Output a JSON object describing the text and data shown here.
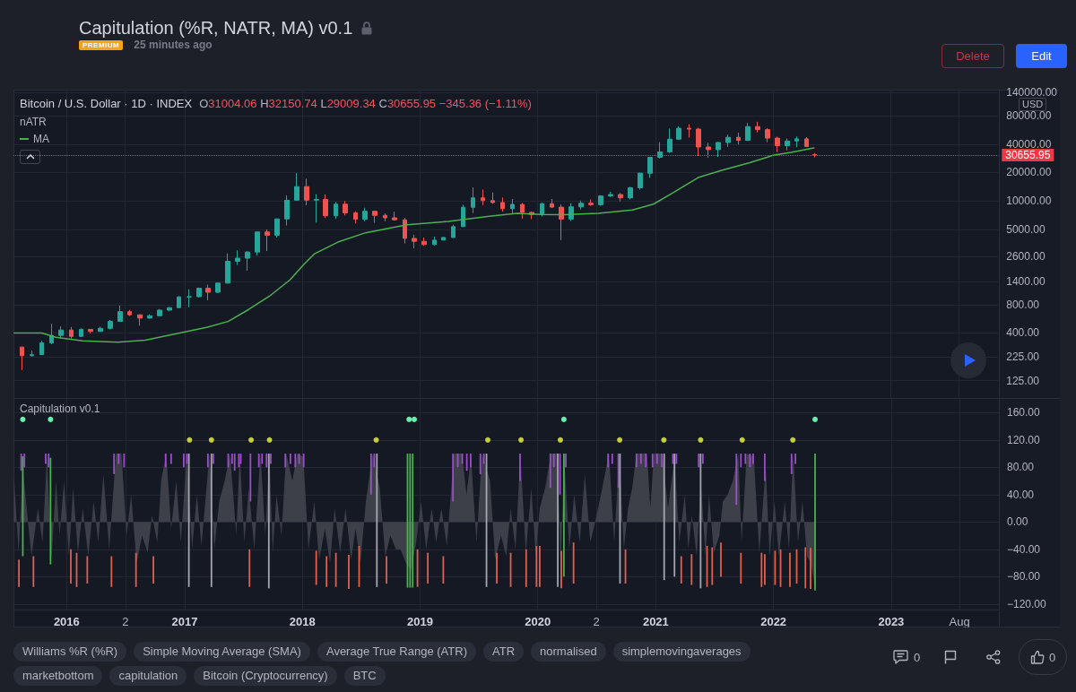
{
  "chart_data": [
    {
      "type": "candlestick",
      "title": "Capitulation (%R, NATR, MA) v0.1",
      "subtitle": "Bitcoin / U.S. Dollar · 1D · INDEX",
      "ylabel": "USD",
      "x": [
        "2015-08-15",
        "2015-09-15",
        "2015-10-15",
        "2015-11-15",
        "2015-12-15",
        "2016-01-15",
        "2016-02-15",
        "2016-03-15",
        "2016-04-15",
        "2016-05-15",
        "2016-06-15",
        "2016-07-15",
        "2016-08-15",
        "2016-09-15",
        "2016-10-15",
        "2016-11-15",
        "2016-12-15",
        "2017-01-15",
        "2017-02-15",
        "2017-03-15",
        "2017-04-15",
        "2017-05-15",
        "2017-06-15",
        "2017-07-15",
        "2017-08-15",
        "2017-09-15",
        "2017-10-15",
        "2017-11-15",
        "2017-12-15",
        "2018-01-15",
        "2018-02-15",
        "2018-03-15",
        "2018-04-15",
        "2018-05-15",
        "2018-06-15",
        "2018-07-15",
        "2018-08-15",
        "2018-09-15",
        "2018-10-15",
        "2018-11-15",
        "2018-12-15",
        "2019-01-15",
        "2019-02-15",
        "2019-03-15",
        "2019-04-15",
        "2019-05-15",
        "2019-06-15",
        "2019-07-15",
        "2019-08-15",
        "2019-09-15",
        "2019-10-15",
        "2019-11-15",
        "2019-12-15",
        "2020-01-15",
        "2020-02-15",
        "2020-03-15",
        "2020-04-15",
        "2020-05-15",
        "2020-06-15",
        "2020-07-15",
        "2020-08-15",
        "2020-09-15",
        "2020-10-15",
        "2020-11-15",
        "2020-12-15",
        "2021-01-15",
        "2021-02-15",
        "2021-03-15",
        "2021-04-15",
        "2021-05-15",
        "2021-06-15",
        "2021-07-15",
        "2021-08-15",
        "2021-09-15",
        "2021-10-15",
        "2021-11-15",
        "2021-12-15",
        "2022-01-15",
        "2022-02-15",
        "2022-03-15",
        "2022-04-15",
        "2022-05-10"
      ],
      "ohlc": [
        [
          284,
          286,
          162,
          230
        ],
        [
          230,
          260,
          226,
          236
        ],
        [
          236,
          330,
          235,
          314
        ],
        [
          314,
          500,
          306,
          377
        ],
        [
          377,
          470,
          350,
          430
        ],
        [
          430,
          463,
          350,
          368
        ],
        [
          368,
          448,
          365,
          437
        ],
        [
          437,
          440,
          396,
          416
        ],
        [
          416,
          467,
          415,
          448
        ],
        [
          448,
          550,
          437,
          531
        ],
        [
          531,
          780,
          527,
          673
        ],
        [
          673,
          704,
          605,
          624
        ],
        [
          624,
          627,
          477,
          575
        ],
        [
          575,
          630,
          568,
          609
        ],
        [
          609,
          720,
          607,
          698
        ],
        [
          698,
          755,
          680,
          742
        ],
        [
          742,
          980,
          740,
          964
        ],
        [
          964,
          1160,
          750,
          970
        ],
        [
          970,
          1210,
          950,
          1190
        ],
        [
          1190,
          1300,
          890,
          1080
        ],
        [
          1080,
          1360,
          1060,
          1350
        ],
        [
          1350,
          2790,
          1340,
          2300
        ],
        [
          2300,
          3000,
          2100,
          2480
        ],
        [
          2480,
          2950,
          1830,
          2880
        ],
        [
          2880,
          4750,
          2650,
          4700
        ],
        [
          4700,
          5000,
          2950,
          4340
        ],
        [
          4340,
          6470,
          4100,
          6460
        ],
        [
          6460,
          11500,
          5500,
          10200
        ],
        [
          10200,
          19700,
          10100,
          14200
        ],
        [
          14200,
          17200,
          9000,
          10200
        ],
        [
          10200,
          11800,
          5900,
          10400
        ],
        [
          10400,
          11700,
          6600,
          6970
        ],
        [
          6970,
          9750,
          6450,
          9240
        ],
        [
          9240,
          9990,
          7050,
          7490
        ],
        [
          7490,
          7770,
          5780,
          6400
        ],
        [
          6400,
          8500,
          6100,
          7780
        ],
        [
          7780,
          7800,
          5880,
          7040
        ],
        [
          7040,
          7400,
          6100,
          6630
        ],
        [
          6630,
          7700,
          6200,
          6320
        ],
        [
          6320,
          6600,
          3550,
          4020
        ],
        [
          4020,
          4400,
          3150,
          3740
        ],
        [
          3740,
          4100,
          3350,
          3460
        ],
        [
          3460,
          4200,
          3380,
          3850
        ],
        [
          3850,
          4110,
          3850,
          4110
        ],
        [
          4110,
          5600,
          4050,
          5350
        ],
        [
          5350,
          9100,
          5320,
          8570
        ],
        [
          8570,
          13900,
          7450,
          10800
        ],
        [
          10800,
          13200,
          9050,
          10100
        ],
        [
          10100,
          12300,
          9350,
          9630
        ],
        [
          9630,
          10900,
          7700,
          8290
        ],
        [
          8290,
          10500,
          7300,
          9200
        ],
        [
          9200,
          9500,
          6500,
          7570
        ],
        [
          7570,
          7750,
          6430,
          7190
        ],
        [
          7190,
          9600,
          6850,
          9350
        ],
        [
          9350,
          10500,
          8450,
          8600
        ],
        [
          8600,
          9200,
          3850,
          6440
        ],
        [
          6440,
          9470,
          6150,
          8660
        ],
        [
          8660,
          10100,
          8120,
          9460
        ],
        [
          9460,
          10400,
          8900,
          9140
        ],
        [
          9140,
          11500,
          8900,
          11300
        ],
        [
          11300,
          12500,
          11000,
          11700
        ],
        [
          11700,
          12100,
          9900,
          10800
        ],
        [
          10800,
          14100,
          10400,
          13800
        ],
        [
          13800,
          19900,
          13200,
          19700
        ],
        [
          19700,
          29300,
          17600,
          29000
        ],
        [
          29000,
          42000,
          28100,
          33100
        ],
        [
          33100,
          58400,
          32300,
          45100
        ],
        [
          45100,
          61800,
          45000,
          58900
        ],
        [
          58900,
          64900,
          47000,
          57700
        ],
        [
          57700,
          59600,
          30000,
          37300
        ],
        [
          37300,
          41300,
          28800,
          35000
        ],
        [
          35000,
          42300,
          29300,
          41600
        ],
        [
          41600,
          50500,
          37400,
          47200
        ],
        [
          47200,
          52900,
          39600,
          43800
        ],
        [
          43800,
          67000,
          43300,
          61300
        ],
        [
          61300,
          69000,
          53300,
          57000
        ],
        [
          57000,
          59100,
          42000,
          46300
        ],
        [
          46300,
          48000,
          32900,
          38500
        ],
        [
          38500,
          45800,
          34300,
          43200
        ],
        [
          43200,
          48200,
          37200,
          45500
        ],
        [
          45500,
          47500,
          37600,
          37700
        ],
        [
          31004.06,
          32150.74,
          29009.34,
          30655.95
        ]
      ],
      "colors": [
        "#ef5350",
        "#26a69a",
        "#26a69a",
        "#26a69a",
        "#26a69a",
        "#ef5350",
        "#26a69a",
        "#ef5350",
        "#26a69a",
        "#26a69a",
        "#26a69a",
        "#ef5350",
        "#ef5350",
        "#26a69a",
        "#26a69a",
        "#26a69a",
        "#26a69a",
        "#26a69a",
        "#26a69a",
        "#ef5350",
        "#26a69a",
        "#26a69a",
        "#26a69a",
        "#26a69a",
        "#26a69a",
        "#ef5350",
        "#26a69a",
        "#26a69a",
        "#26a69a",
        "#ef5350",
        "#26a69a",
        "#ef5350",
        "#26a69a",
        "#ef5350",
        "#ef5350",
        "#26a69a",
        "#ef5350",
        "#ef5350",
        "#ef5350",
        "#ef5350",
        "#ef5350",
        "#ef5350",
        "#26a69a",
        "#26a69a",
        "#26a69a",
        "#26a69a",
        "#26a69a",
        "#ef5350",
        "#ef5350",
        "#ef5350",
        "#26a69a",
        "#ef5350",
        "#ef5350",
        "#26a69a",
        "#ef5350",
        "#ef5350",
        "#26a69a",
        "#26a69a",
        "#ef5350",
        "#26a69a",
        "#26a69a",
        "#ef5350",
        "#26a69a",
        "#26a69a",
        "#26a69a",
        "#26a69a",
        "#26a69a",
        "#26a69a",
        "#ef5350",
        "#ef5350",
        "#ef5350",
        "#26a69a",
        "#26a69a",
        "#ef5350",
        "#26a69a",
        "#ef5350",
        "#ef5350",
        "#ef5350",
        "#26a69a",
        "#26a69a",
        "#ef5350",
        "#ef5350"
      ],
      "series": [
        {
          "type": "line",
          "name": "MA",
          "color": "#4caf50",
          "x": [
            "2015-07-22",
            "2015-10-16",
            "2015-11-28",
            "2016-02-20",
            "2016-06-08",
            "2016-09-01",
            "2016-12-17",
            "2017-03-13",
            "2017-05-16",
            "2017-07-19",
            "2017-09-21",
            "2017-11-24",
            "2018-01-06",
            "2018-02-07",
            "2018-04-22",
            "2018-07-17",
            "2018-11-22",
            "2019-03-31",
            "2019-08-05",
            "2019-10-30",
            "2020-01-11",
            "2020-03-23",
            "2020-07-08",
            "2020-10-22",
            "2020-12-26",
            "2021-02-28",
            "2021-05-14",
            "2021-07-26",
            "2021-10-21",
            "2022-01-04",
            "2022-02-26",
            "2022-05-08"
          ],
          "values": [
            400,
            400,
            360,
            330,
            320,
            335,
            400,
            460,
            530,
            710,
            980,
            1460,
            2130,
            2740,
            3670,
            4610,
            5590,
            6090,
            6900,
            7380,
            7200,
            7140,
            7380,
            8040,
            9260,
            12400,
            17700,
            21100,
            25400,
            30600,
            32700,
            36500
          ]
        }
      ],
      "xlim": [
        "2015-07-20",
        "2023-12-01"
      ],
      "xticks": [
        {
          "value": "2016-01-01",
          "label": null
        },
        {
          "value": "2016-07-01",
          "label": null
        },
        {
          "value": "2017-01-01",
          "label": null
        },
        {
          "value": "2018-01-01",
          "label": null
        },
        {
          "value": "2019-01-01",
          "label": null
        },
        {
          "value": "2020-01-01",
          "label": null
        },
        {
          "value": "2020-07-01",
          "label": null
        },
        {
          "value": "2021-01-01",
          "label": null
        },
        {
          "value": "2022-01-01",
          "label": null
        },
        {
          "value": "2023-01-01",
          "label": null
        },
        {
          "value": "2023-08-01",
          "label": null
        }
      ],
      "ylim": [
        82,
        151000
      ],
      "yticks": [
        {
          "value": 125,
          "label": "125.00"
        },
        {
          "value": 225,
          "label": "225.00"
        },
        {
          "value": 400,
          "label": "400.00"
        },
        {
          "value": 800,
          "label": "800.00"
        },
        {
          "value": 1400,
          "label": "1400.00"
        },
        {
          "value": 2600,
          "label": "2600.00"
        },
        {
          "value": 5000,
          "label": "5000.00"
        },
        {
          "value": 10000,
          "label": "10000.00"
        },
        {
          "value": 20000,
          "label": "20000.00"
        },
        {
          "value": 40000,
          "label": "40000.00"
        },
        {
          "value": 80000,
          "label": "80000.00"
        },
        {
          "value": 140000,
          "label": "140000.00"
        }
      ],
      "log": true,
      "grid": true,
      "legend": "top left",
      "marker": "none",
      "tick_labels": "y",
      "ref_lines": [
        {
          "axis": "y",
          "value": 30655.95,
          "label": "30655.95",
          "color": "#f23645",
          "line_style": "dotted"
        }
      ],
      "annotations": [
        "PREMIUM",
        "25 minutes ago",
        "Delete",
        "Edit",
        "O31004.06 H32150.74 L29009.34 C30655.95 −345.36 (−1.11%)",
        "nATR"
      ]
    },
    {
      "type": "area",
      "title": "Capitulation v0.1",
      "series": [
        {
          "color": "#3d4049",
          "x": [
            "2015-07-21",
            "2015-08-05",
            "2015-08-18",
            "2015-09-01",
            "2015-09-14",
            "2015-10-04",
            "2015-10-18",
            "2015-11-01",
            "2015-11-15",
            "2015-11-29",
            "2015-12-10",
            "2015-12-24",
            "2016-01-08",
            "2016-01-21",
            "2016-02-05",
            "2016-02-20",
            "2016-03-08",
            "2016-03-25",
            "2016-04-08",
            "2016-04-24",
            "2016-05-12",
            "2016-06-02",
            "2016-06-19",
            "2016-07-05",
            "2016-07-19",
            "2016-08-05",
            "2016-08-22",
            "2016-09-08",
            "2016-09-22",
            "2016-10-08",
            "2016-10-20",
            "2016-11-05",
            "2016-11-20",
            "2016-12-06",
            "2016-12-20",
            "2017-01-08",
            "2017-01-24",
            "2017-02-08",
            "2017-02-22",
            "2017-03-19",
            "2017-04-03",
            "2017-04-18",
            "2017-05-05",
            "2017-05-22",
            "2017-06-10",
            "2017-06-21",
            "2017-07-05",
            "2017-07-19",
            "2017-08-05",
            "2017-08-24",
            "2017-09-08",
            "2017-09-21",
            "2017-10-01",
            "2017-10-13",
            "2017-10-28",
            "2017-11-12",
            "2017-12-01",
            "2017-12-16",
            "2018-01-04",
            "2018-01-20",
            "2018-02-07",
            "2018-02-22",
            "2018-03-12",
            "2018-03-28",
            "2018-04-11",
            "2018-04-28",
            "2018-05-15",
            "2018-06-01",
            "2018-06-15",
            "2018-06-30",
            "2018-07-17",
            "2018-08-07",
            "2018-08-29",
            "2018-09-15",
            "2018-10-01",
            "2018-10-18",
            "2018-11-01",
            "2018-11-18",
            "2018-12-04",
            "2018-12-20",
            "2019-01-04",
            "2019-01-20",
            "2019-02-06",
            "2019-02-20",
            "2019-03-08",
            "2019-03-25",
            "2019-04-16",
            "2019-05-11",
            "2019-05-25",
            "2019-06-08",
            "2019-06-25",
            "2019-07-12",
            "2019-08-06",
            "2019-08-22",
            "2019-09-09",
            "2019-09-25",
            "2019-10-09",
            "2019-10-24",
            "2019-11-08",
            "2019-11-25",
            "2019-12-12",
            "2019-12-26",
            "2020-01-07",
            "2020-01-24",
            "2020-02-11",
            "2020-03-02",
            "2020-03-12",
            "2020-03-23",
            "2020-04-08",
            "2020-04-23",
            "2020-05-10",
            "2020-05-26",
            "2020-06-12",
            "2020-06-27",
            "2020-07-15",
            "2020-08-09",
            "2020-08-25",
            "2020-09-10",
            "2020-09-24",
            "2020-10-07",
            "2020-10-20",
            "2020-11-02",
            "2020-12-05",
            "2020-12-15",
            "2020-12-26",
            "2021-01-21",
            "2021-02-08",
            "2021-02-28",
            "2021-03-15",
            "2021-04-01",
            "2021-04-12",
            "2021-04-23",
            "2021-05-08",
            "2021-05-21",
            "2021-06-04",
            "2021-06-15",
            "2021-06-30",
            "2021-07-17",
            "2021-07-28",
            "2021-08-12",
            "2021-08-28",
            "2021-09-14",
            "2021-09-24",
            "2021-10-10",
            "2021-11-01",
            "2021-11-18",
            "2021-12-08",
            "2021-12-20",
            "2022-01-04",
            "2022-01-18",
            "2022-02-05",
            "2022-02-18",
            "2022-03-03",
            "2022-03-18",
            "2022-04-01",
            "2022-04-15",
            "2022-04-27",
            "2022-05-10"
          ],
          "values": [
            70,
            -45,
            80,
            10,
            -50,
            20,
            -30,
            95,
            -55,
            60,
            -20,
            60,
            -50,
            50,
            -45,
            20,
            -50,
            30,
            -30,
            70,
            -40,
            100,
            100,
            -20,
            40,
            -60,
            -20,
            -45,
            10,
            -30,
            60,
            100,
            -10,
            60,
            -30,
            100,
            -40,
            40,
            -35,
            100,
            -40,
            30,
            60,
            100,
            -20,
            100,
            -30,
            50,
            -40,
            100,
            -20,
            100,
            -45,
            40,
            -20,
            100,
            60,
            100,
            95,
            -40,
            30,
            -55,
            -10,
            -60,
            20,
            -45,
            20,
            -55,
            -10,
            -60,
            30,
            100,
            50,
            -50,
            -20,
            -40,
            -40,
            -60,
            -70,
            -30,
            30,
            -40,
            20,
            -30,
            20,
            -35,
            100,
            100,
            40,
            95,
            -30,
            100,
            60,
            -55,
            -20,
            -50,
            20,
            -40,
            100,
            -45,
            50,
            -50,
            20,
            50,
            100,
            100,
            -70,
            95,
            -40,
            40,
            -30,
            70,
            -30,
            0,
            40,
            100,
            -30,
            100,
            -40,
            20,
            50,
            100,
            100,
            20,
            100,
            100,
            20,
            95,
            -30,
            40,
            -40,
            10,
            -50,
            60,
            -50,
            40,
            -45,
            -20,
            30,
            40,
            60,
            100,
            -30,
            100,
            95,
            -45,
            80,
            -50,
            30,
            -50,
            30,
            -40,
            100,
            -30,
            30,
            -50,
            -60,
            -95
          ]
        },
        {
          "type": "bar",
          "color": "#9c4dcc",
          "x": [
            "2015-08-13",
            "2015-08-23",
            "2015-10-28",
            "2015-11-06",
            "2016-05-27",
            "2016-06-10",
            "2016-06-27",
            "2016-11-03",
            "2016-11-20",
            "2016-12-29",
            "2017-01-08",
            "2017-03-14",
            "2017-03-31",
            "2017-05-16",
            "2017-05-28",
            "2017-06-05",
            "2017-06-18",
            "2017-06-24",
            "2017-07-24",
            "2017-08-19",
            "2017-08-29",
            "2017-09-12",
            "2017-09-25",
            "2017-11-09",
            "2017-11-25",
            "2017-12-10",
            "2017-12-22",
            "2018-01-05",
            "2018-08-02",
            "2018-08-12",
            "2019-04-13",
            "2019-04-28",
            "2019-05-12",
            "2019-05-26",
            "2019-06-07",
            "2019-07-07",
            "2019-07-18",
            "2019-11-07",
            "2020-02-09",
            "2020-02-20",
            "2020-03-10",
            "2020-03-28",
            "2020-08-06",
            "2020-08-19",
            "2020-09-07",
            "2020-11-02",
            "2020-11-16",
            "2020-12-01",
            "2020-12-22",
            "2021-01-05",
            "2021-01-20",
            "2021-02-23",
            "2021-03-06",
            "2021-05-14",
            "2021-05-27",
            "2021-09-08",
            "2021-09-22",
            "2021-10-06",
            "2021-10-20",
            "2021-10-30",
            "2021-12-05",
            "2022-02-26",
            "2022-03-10"
          ],
          "base": [
            75,
            80,
            85,
            80,
            70,
            85,
            80,
            80,
            85,
            80,
            85,
            80,
            85,
            80,
            85,
            75,
            80,
            85,
            30,
            80,
            85,
            80,
            85,
            80,
            85,
            80,
            85,
            80,
            40,
            80,
            30,
            80,
            85,
            75,
            80,
            70,
            85,
            60,
            50,
            80,
            40,
            80,
            80,
            85,
            50,
            80,
            85,
            80,
            80,
            85,
            80,
            85,
            85,
            80,
            85,
            25,
            80,
            85,
            80,
            85,
            60,
            70,
            85
          ],
          "values": [
            25,
            20,
            15,
            20,
            30,
            15,
            20,
            20,
            15,
            20,
            15,
            20,
            15,
            20,
            15,
            25,
            20,
            15,
            70,
            20,
            15,
            20,
            15,
            20,
            15,
            20,
            15,
            20,
            60,
            20,
            70,
            20,
            15,
            25,
            20,
            30,
            15,
            40,
            50,
            20,
            60,
            20,
            20,
            15,
            50,
            20,
            15,
            20,
            20,
            15,
            20,
            15,
            15,
            20,
            15,
            75,
            20,
            15,
            20,
            15,
            40,
            30,
            15
          ]
        },
        {
          "type": "bar",
          "color": "#a3a6af",
          "x": [
            "2017-01-14",
            "2017-03-25",
            "2017-09-19",
            "2018-08-20",
            "2019-07-26",
            "2020-03-03",
            "2020-09-12",
            "2021-01-27",
            "2021-02-28",
            "2021-05-20"
          ],
          "base": [
            -95,
            -95,
            -97,
            -95,
            -95,
            -95,
            -90,
            -85,
            -80,
            -97
          ],
          "values": [
            195,
            195,
            197,
            195,
            195,
            195,
            190,
            185,
            180,
            197
          ]
        },
        {
          "type": "bar",
          "color": "#e0604f",
          "x": [
            "2015-08-06",
            "2015-09-20",
            "2016-01-14",
            "2016-02-01",
            "2016-03-05",
            "2016-05-19",
            "2016-08-03",
            "2016-09-26",
            "2017-07-21",
            "2018-02-13",
            "2018-03-17",
            "2018-04-15",
            "2018-05-25",
            "2018-06-26",
            "2018-09-19",
            "2018-12-24",
            "2019-01-25",
            "2019-03-14",
            "2019-08-27",
            "2019-10-09",
            "2019-11-26",
            "2019-12-28",
            "2020-01-07",
            "2020-03-14",
            "2020-04-21",
            "2020-09-29",
            "2021-03-21",
            "2021-04-22",
            "2021-06-09",
            "2021-06-25",
            "2021-07-22",
            "2021-09-22",
            "2021-11-25",
            "2021-12-05",
            "2022-01-06",
            "2022-01-23",
            "2022-02-21",
            "2022-03-14",
            "2022-04-10",
            "2022-04-26"
          ],
          "base": [
            -95,
            -95,
            -90,
            -95,
            -90,
            -95,
            -95,
            -90,
            -95,
            -92,
            -95,
            -95,
            -98,
            -95,
            -90,
            -95,
            -90,
            -90,
            -90,
            -95,
            -95,
            -95,
            -95,
            -97,
            -90,
            -90,
            -90,
            -92,
            -95,
            -92,
            -80,
            -90,
            -95,
            -92,
            -92,
            -95,
            -95,
            -90,
            -97,
            -98
          ],
          "values": [
            40,
            45,
            50,
            50,
            40,
            45,
            50,
            40,
            55,
            50,
            45,
            50,
            50,
            60,
            40,
            55,
            45,
            40,
            45,
            50,
            55,
            60,
            60,
            55,
            60,
            50,
            40,
            45,
            60,
            55,
            50,
            45,
            50,
            45,
            50,
            55,
            50,
            50,
            60,
            60
          ]
        },
        {
          "type": "bar",
          "color": "#4caf50",
          "x": [
            "2015-08-18",
            "2015-11-12",
            "2018-11-23",
            "2018-12-01",
            "2018-12-09",
            "2020-03-22",
            "2022-05-10"
          ],
          "base": [
            -50,
            -62,
            -96,
            -96,
            -96,
            -80,
            -100
          ],
          "values": [
            146,
            156,
            196,
            196,
            196,
            180,
            200
          ]
        },
        {
          "type": "scatter",
          "color": "#69f0ae",
          "marker": "circle",
          "x": [
            "2015-08-18",
            "2015-11-12",
            "2018-11-28",
            "2018-12-14",
            "2020-03-22",
            "2022-05-10"
          ],
          "values": [
            150,
            150,
            150,
            150,
            150,
            150
          ]
        },
        {
          "type": "scatter",
          "color": "#c6cf3a",
          "marker": "circle",
          "x": [
            "2017-01-16",
            "2017-03-25",
            "2017-07-26",
            "2017-09-21",
            "2018-08-18",
            "2019-07-30",
            "2019-11-10",
            "2020-03-11",
            "2020-09-11",
            "2021-01-26",
            "2021-05-20",
            "2021-09-26",
            "2022-03-02"
          ],
          "values": [
            120,
            120,
            120,
            120,
            120,
            120,
            120,
            120,
            120,
            120,
            120,
            120,
            120
          ]
        }
      ],
      "xlim": [
        "2015-07-20",
        "2023-12-01"
      ],
      "xticks": [
        {
          "value": "2016-01-01",
          "label": "2016"
        },
        {
          "value": "2016-07-01",
          "label": "2"
        },
        {
          "value": "2017-01-01",
          "label": "2017"
        },
        {
          "value": "2018-01-01",
          "label": "2018"
        },
        {
          "value": "2019-01-01",
          "label": "2019"
        },
        {
          "value": "2020-01-01",
          "label": "2020"
        },
        {
          "value": "2020-07-01",
          "label": "2"
        },
        {
          "value": "2021-01-01",
          "label": "2021"
        },
        {
          "value": "2022-01-01",
          "label": "2022"
        },
        {
          "value": "2023-01-01",
          "label": "2023"
        },
        {
          "value": "2023-08-01",
          "label": "Aug"
        }
      ],
      "ylim": [
        -128,
        180
      ],
      "yticks": [
        {
          "value": -120,
          "label": "−120.00"
        },
        {
          "value": -80,
          "label": "−80.00"
        },
        {
          "value": -40,
          "label": "−40.00"
        },
        {
          "value": 0,
          "label": "0.00"
        },
        {
          "value": 40,
          "label": "40.00"
        },
        {
          "value": 80,
          "label": "80.00"
        },
        {
          "value": 120,
          "label": "120.00"
        },
        {
          "value": 160,
          "label": "160.00"
        }
      ],
      "grid": true,
      "marker": "none",
      "annotations": [
        "Williams %R (%R)",
        "Simple Moving Average (SMA)",
        "Average True Range (ATR)",
        "ATR",
        "normalised",
        "simplemovingaverages",
        "marketbottom",
        "capitulation",
        "Bitcoin (Cryptocurrency)",
        "BTC",
        "0",
        "0"
      ]
    }
  ]
}
